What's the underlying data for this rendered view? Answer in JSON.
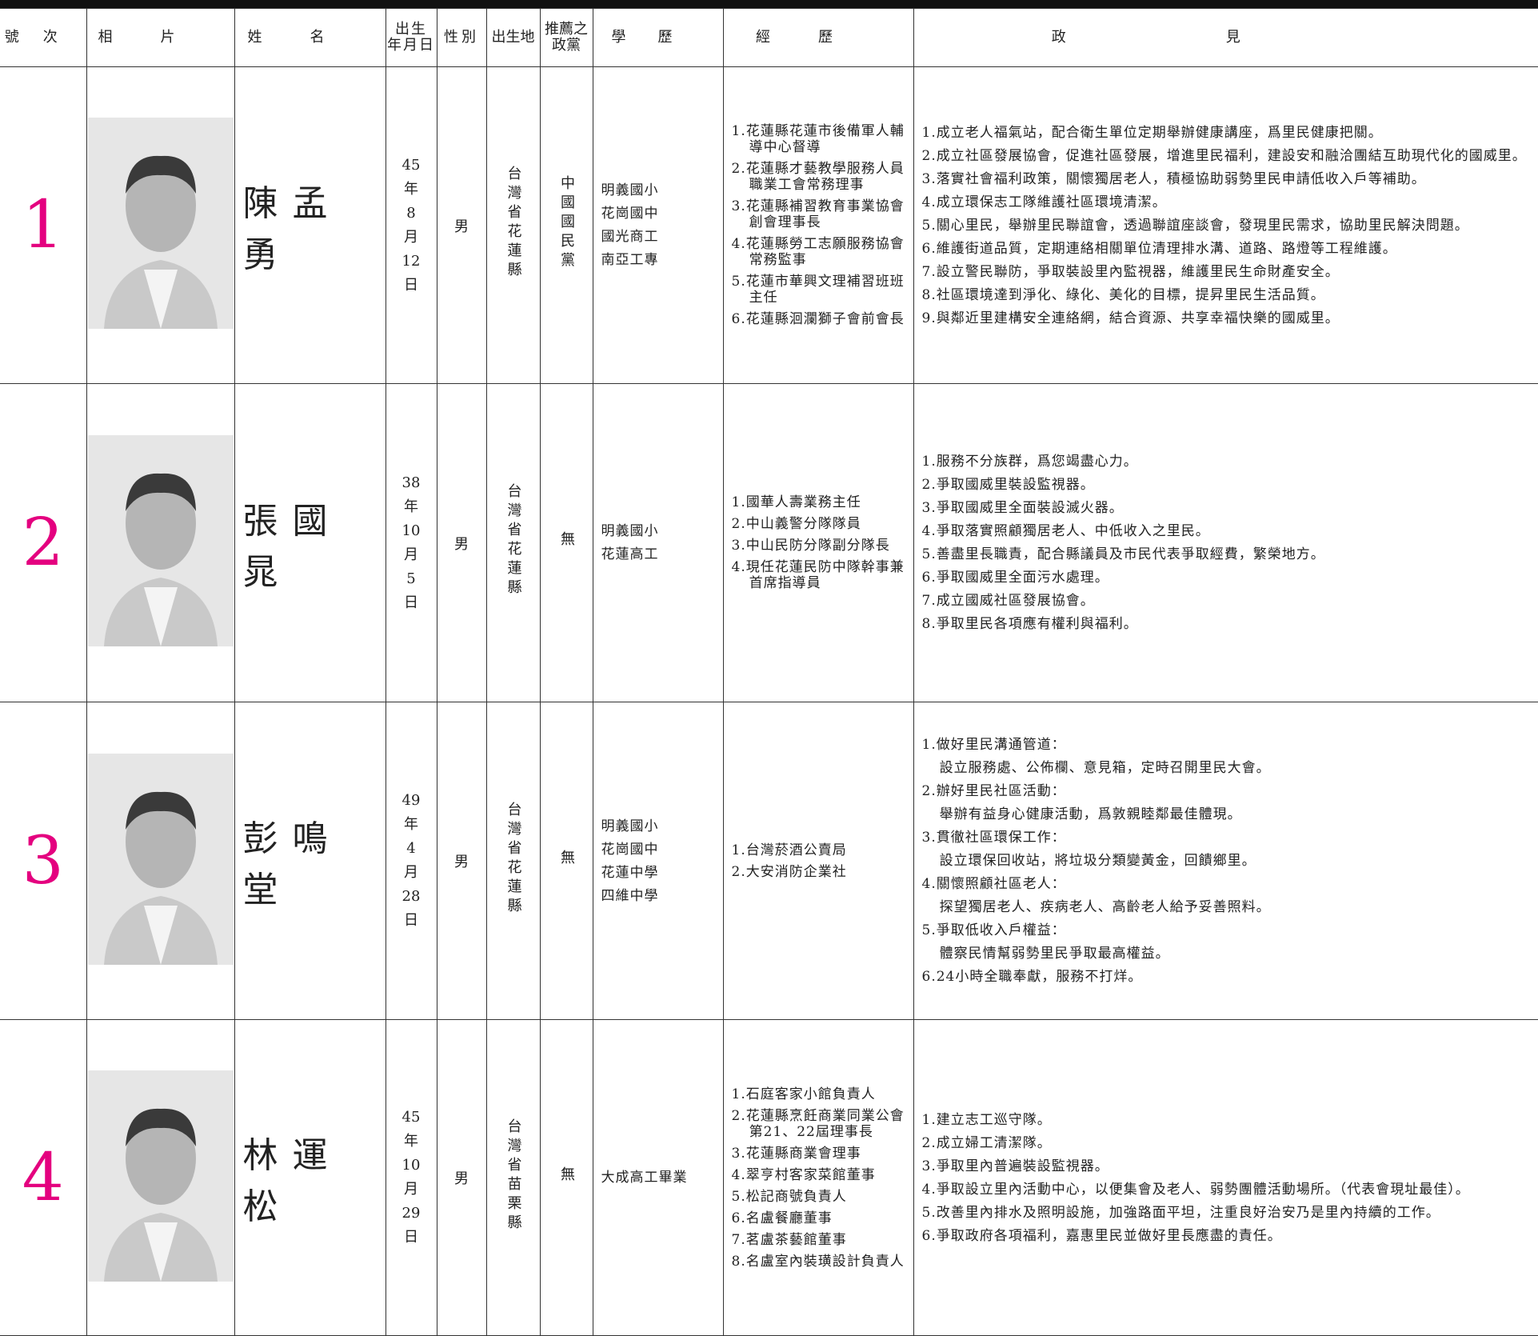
{
  "header": {
    "columns": [
      "號次",
      "相片",
      "姓名",
      [
        "出生",
        "年月日"
      ],
      "性別",
      "出生地",
      [
        "推薦之",
        "政黨"
      ],
      "學歷",
      "經歷",
      "政見"
    ]
  },
  "candidates": [
    {
      "number": "1",
      "name": "陳孟勇",
      "birth": [
        "45",
        "年",
        "8",
        "月",
        "12",
        "日"
      ],
      "gender": "男",
      "birthplace": "台灣省花蓮縣",
      "party": "中國國民黨",
      "education": [
        "明義國小",
        "花崗國中",
        "國光商工",
        "南亞工專"
      ],
      "experience": [
        "1.花蓮縣花蓮市後備軍人輔導中心督導",
        "2.花蓮縣才藝教學服務人員職業工會常務理事",
        "3.花蓮縣補習教育事業協會創會理事長",
        "4.花蓮縣勞工志願服務協會常務監事",
        "5.花蓮市華興文理補習班班主任",
        "6.花蓮縣洄瀾獅子會前會長"
      ],
      "platform": [
        "1.成立老人福氣站，配合衛生單位定期舉辦健康講座，爲里民健康把關。",
        "2.成立社區發展協會，促進社區發展，增進里民福利，建設安和融洽團結互助現代化的國威里。",
        "3.落實社會福利政策，關懷獨居老人，積極協助弱勢里民申請低收入戶等補助。",
        "4.成立環保志工隊維護社區環境清潔。",
        "5.關心里民，舉辦里民聯誼會，透過聯誼座談會，發現里民需求，協助里民解決問題。",
        "6.維護街道品質，定期連絡相關單位清理排水溝、道路、路燈等工程維護。",
        "7.設立警民聯防，爭取裝設里內監視器，維護里民生命財產安全。",
        "8.社區環境達到淨化、綠化、美化的目標，提昇里民生活品質。",
        "9.與鄰近里建構安全連絡網，結合資源、共享幸福快樂的國威里。"
      ]
    },
    {
      "number": "2",
      "name": "張國晁",
      "birth": [
        "38",
        "年",
        "10",
        "月",
        "5",
        "日"
      ],
      "gender": "男",
      "birthplace": "台灣省花蓮縣",
      "party": "無",
      "education": [
        "明義國小",
        "花蓮高工"
      ],
      "experience": [
        "1.國華人壽業務主任",
        "2.中山義警分隊隊員",
        "3.中山民防分隊副分隊長",
        "4.現任花蓮民防中隊幹事兼首席指導員"
      ],
      "platform": [
        "1.服務不分族群，爲您竭盡心力。",
        "2.爭取國威里裝設監視器。",
        "3.爭取國威里全面裝設滅火器。",
        "4.爭取落實照顧獨居老人、中低收入之里民。",
        "5.善盡里長職責，配合縣議員及市民代表爭取經費，繁榮地方。",
        "6.爭取國威里全面污水處理。",
        "7.成立國威社區發展協會。",
        "8.爭取里民各項應有權利與福利。"
      ]
    },
    {
      "number": "3",
      "name": "彭鳴堂",
      "birth": [
        "49",
        "年",
        "4",
        "月",
        "28",
        "日"
      ],
      "gender": "男",
      "birthplace": "台灣省花蓮縣",
      "party": "無",
      "education": [
        "明義國小",
        "花崗國中",
        "花蓮中學",
        "四維中學"
      ],
      "experience": [
        "1.台灣菸酒公賣局",
        "2.大安消防企業社"
      ],
      "platform": [
        "1.做好里民溝通管道：",
        "設立服務處、公佈欄、意見箱，定時召開里民大會。",
        "2.辦好里民社區活動：",
        "舉辦有益身心健康活動，爲敦親睦鄰最佳體現。",
        "3.貫徹社區環保工作：",
        "設立環保回收站，將垃圾分類變黃金，回饋鄉里。",
        "4.關懷照顧社區老人：",
        "探望獨居老人、疾病老人、高齡老人給予妥善照料。",
        "5.爭取低收入戶權益：",
        "體察民情幫弱勢里民爭取最高權益。",
        "6.24小時全職奉獻，服務不打烊。"
      ]
    },
    {
      "number": "4",
      "name": "林運松",
      "birth": [
        "45",
        "年",
        "10",
        "月",
        "29",
        "日"
      ],
      "gender": "男",
      "birthplace": "台灣省苗栗縣",
      "party": "無",
      "education": [
        "大成高工畢業"
      ],
      "experience": [
        "1.石庭客家小館負責人",
        "2.花蓮縣烹飪商業同業公會第21、22屆理事長",
        "3.花蓮縣商業會理事",
        "4.翠亨村客家菜館董事",
        "5.松記商號負責人",
        "6.名盧餐廳董事",
        "7.茗盧茶藝館董事",
        "8.名盧室內裝璜設計負責人"
      ],
      "platform": [
        "1.建立志工巡守隊。",
        "2.成立婦工清潔隊。",
        "3.爭取里內普遍裝設監視器。",
        "4.爭取設立里內活動中心，以便集會及老人、弱勢團體活動場所。（代表會現址最佳）。",
        "5.改善里內排水及照明設施，加強路面平坦，注重良好治安乃是里內持續的工作。",
        "6.爭取政府各項福利，嘉惠里民並做好里長應盡的責任。"
      ]
    }
  ]
}
